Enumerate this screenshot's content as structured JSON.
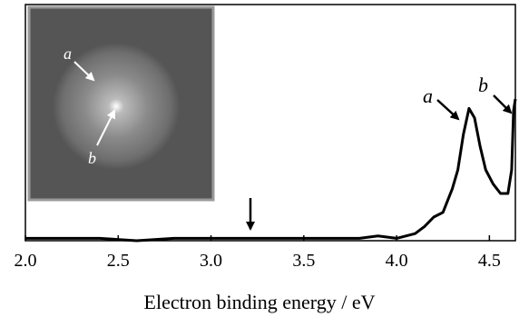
{
  "chart_data": {
    "type": "line",
    "x_label": "Electron binding energy / eV",
    "xlim": [
      2.0,
      4.64
    ],
    "ylim": [
      0,
      1
    ],
    "xticks": [
      {
        "value": 2,
        "label": "2.0"
      },
      2.5,
      {
        "value": 3,
        "label": "3.0"
      },
      3.5,
      {
        "value": 4,
        "label": "4.0"
      },
      4.5
    ],
    "color": "#000000",
    "x": [
      2.0,
      2.2,
      2.4,
      2.6,
      2.8,
      3.0,
      3.2,
      3.4,
      3.6,
      3.8,
      3.9,
      4.0,
      4.1,
      4.15,
      4.2,
      4.25,
      4.3,
      4.33,
      4.36,
      4.39,
      4.42,
      4.45,
      4.48,
      4.52,
      4.56,
      4.6,
      4.62,
      4.63,
      4.64
    ],
    "values": [
      0.01,
      0.01,
      0.01,
      0.0,
      0.01,
      0.01,
      0.01,
      0.01,
      0.01,
      0.01,
      0.02,
      0.01,
      0.03,
      0.06,
      0.1,
      0.12,
      0.22,
      0.3,
      0.45,
      0.56,
      0.52,
      0.4,
      0.3,
      0.24,
      0.2,
      0.2,
      0.3,
      0.55,
      0.6
    ],
    "annotations": [
      "a",
      "b"
    ],
    "inset_labels": [
      "a",
      "b"
    ]
  }
}
